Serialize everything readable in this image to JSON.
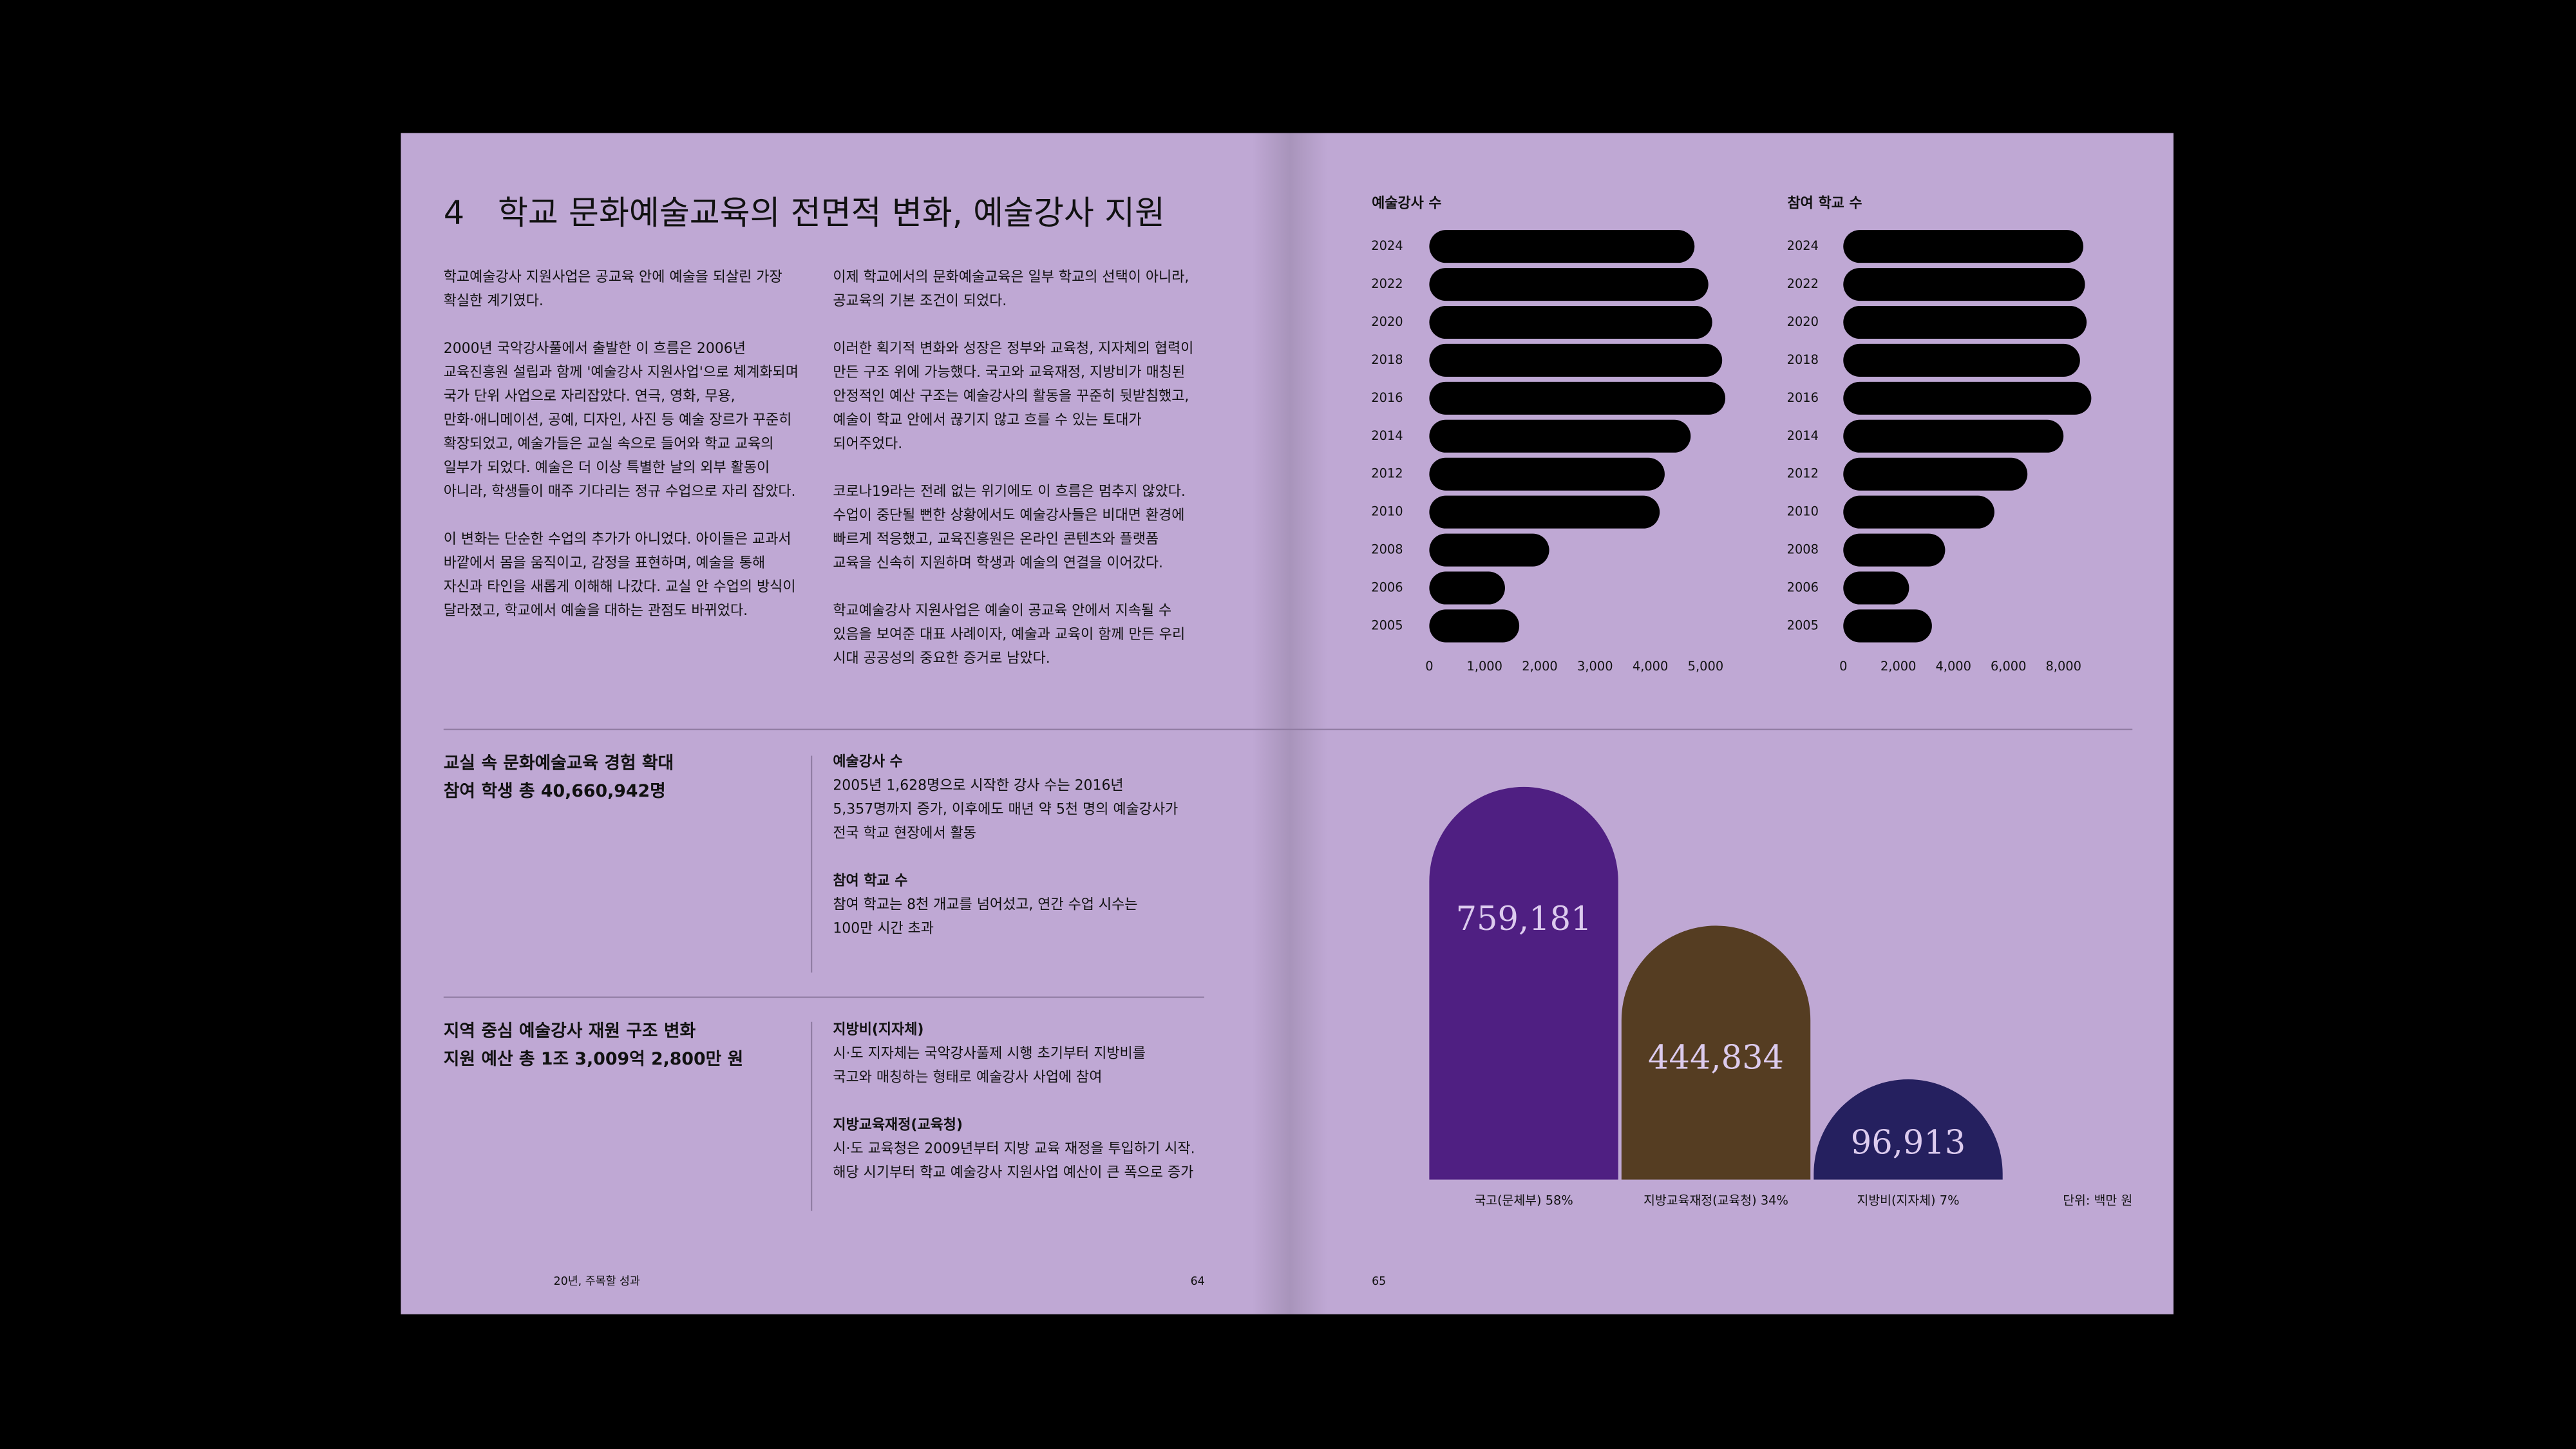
{
  "page": {
    "left": {
      "section_number": "4",
      "title": "학교 문화예술교육의 전면적 변화, 예술강사 지원",
      "columns": [
        [
          [
            "학교예술강사 지원사업은 공교육 안에 예술을 되살린 가장",
            "확실한 계기였다."
          ],
          [
            "2000년 국악강사풀에서 출발한 이 흐름은 2006년",
            "교육진흥원 설립과 함께 '예술강사 지원사업'으로 체계화되며",
            "국가 단위 사업으로 자리잡았다. 연극, 영화, 무용,",
            "만화·애니메이션, 공예, 디자인, 사진 등 예술 장르가 꾸준히",
            "확장되었고, 예술가들은 교실 속으로 들어와 학교 교육의",
            "일부가 되었다. 예술은 더 이상 특별한 날의 외부 활동이",
            "아니라, 학생들이 매주 기다리는 정규 수업으로 자리 잡았다."
          ],
          [
            "이 변화는 단순한 수업의 추가가 아니었다. 아이들은 교과서",
            "바깥에서 몸을 움직이고, 감정을 표현하며, 예술을 통해",
            "자신과 타인을 새롭게 이해해 나갔다. 교실 안 수업의 방식이",
            "달라졌고, 학교에서 예술을 대하는 관점도 바뀌었다."
          ]
        ],
        [
          [
            "이제 학교에서의 문화예술교육은 일부 학교의 선택이 아니라,",
            "공교육의 기본 조건이 되었다."
          ],
          [
            "이러한 획기적 변화와 성장은 정부와 교육청, 지자체의 협력이",
            "만든 구조 위에 가능했다. 국고와 교육재정, 지방비가 매칭된",
            "안정적인 예산 구조는 예술강사의 활동을 꾸준히 뒷받침했고,",
            "예술이 학교 안에서 끊기지 않고 흐를 수 있는 토대가",
            "되어주었다."
          ],
          [
            "코로나19라는 전례 없는 위기에도 이 흐름은 멈추지 않았다.",
            "수업이 중단될 뻔한 상황에서도 예술강사들은 비대면 환경에",
            "빠르게 적응했고, 교육진흥원은 온라인 콘텐츠와 플랫폼",
            "교육을 신속히 지원하며 학생과 예술의 연결을 이어갔다."
          ],
          [
            "학교예술강사 지원사업은 예술이 공교육 안에서 지속될 수",
            "있음을 보여준 대표 사례이자, 예술과 교육이 함께 만든 우리",
            "시대 공공성의 중요한 증거로 남았다."
          ]
        ]
      ],
      "blocks": [
        {
          "heading": [
            "교실 속 문화예술교육 경험 확대",
            "참여 학생 총 40,660,942명"
          ],
          "items": [
            {
              "title": "예술강사 수",
              "lines": [
                "2005년 1,628명으로 시작한 강사 수는 2016년",
                "5,357명까지 증가, 이후에도 매년 약 5천 명의 예술강사가",
                "전국 학교 현장에서 활동"
              ]
            },
            {
              "title": "참여 학교 수",
              "lines": [
                "참여 학교는 8천 개교를 넘어섰고, 연간 수업 시수는",
                "100만 시간 초과"
              ]
            }
          ]
        },
        {
          "heading": [
            "지역 중심 예술강사 재원 구조 변화",
            "지원 예산 총 1조 3,009억 2,800만 원"
          ],
          "items": [
            {
              "title": "지방비(지자체)",
              "lines": [
                "시·도 지자체는 국악강사풀제 시행 초기부터 지방비를",
                "국고와 매칭하는 형태로 예술강사 사업에 참여"
              ]
            },
            {
              "title": "지방교육재정(교육청)",
              "lines": [
                "시·도 교육청은 2009년부터 지방 교육 재정을 투입하기 시작.",
                "해당 시기부터 학교 예술강사 지원사업 예산이 큰 폭으로 증가"
              ]
            }
          ]
        }
      ],
      "footer": {
        "running_title": "20년, 주목할 성과",
        "page_number": "64"
      }
    },
    "right": {
      "page_number": "65"
    }
  },
  "chart_data": [
    {
      "type": "bar",
      "orientation": "horizontal",
      "title": "예술강사 수",
      "categories": [
        "2024",
        "2022",
        "2020",
        "2018",
        "2016",
        "2014",
        "2012",
        "2010",
        "2008",
        "2006",
        "2005"
      ],
      "values": [
        4800,
        5050,
        5120,
        5300,
        5357,
        4730,
        4260,
        4170,
        2170,
        1370,
        1628
      ],
      "color": "#000000",
      "xlim": [
        0,
        5500
      ],
      "xticks": [
        0,
        {
          "value": 1000,
          "label": "1,000"
        },
        {
          "value": 2000,
          "label": "2,000"
        },
        {
          "value": 3000,
          "label": "3,000"
        },
        {
          "value": 4000,
          "label": "4,000"
        },
        {
          "value": 5000,
          "label": "5,000"
        }
      ]
    },
    {
      "type": "bar",
      "orientation": "horizontal",
      "title": "참여 학교 수",
      "categories": [
        "2024",
        "2022",
        "2020",
        "2018",
        "2016",
        "2014",
        "2012",
        "2010",
        "2008",
        "2006",
        "2005"
      ],
      "values": [
        8720,
        8780,
        8840,
        8600,
        9010,
        8000,
        6690,
        5490,
        3700,
        2390,
        3220
      ],
      "color": "#000000",
      "xlim": [
        0,
        9400
      ],
      "xticks": [
        0,
        {
          "value": 2000,
          "label": "2,000"
        },
        {
          "value": 4000,
          "label": "4,000"
        },
        {
          "value": 6000,
          "label": "6,000"
        },
        {
          "value": 8000,
          "label": "8,000"
        }
      ]
    },
    {
      "type": "arch",
      "categories": [
        "국고(문체부) 58%",
        "지방교육재정(교육청) 34%",
        "지방비(지자체) 7%"
      ],
      "values": [
        759181,
        444834,
        96913
      ],
      "value_labels": [
        "759,181",
        "444,834",
        "96,913"
      ],
      "colors": [
        "#4f1f82",
        "#553d22",
        "#25205f"
      ],
      "ylim": [
        -130000,
        800000
      ],
      "unit_label": "단위: 백만 원"
    }
  ]
}
